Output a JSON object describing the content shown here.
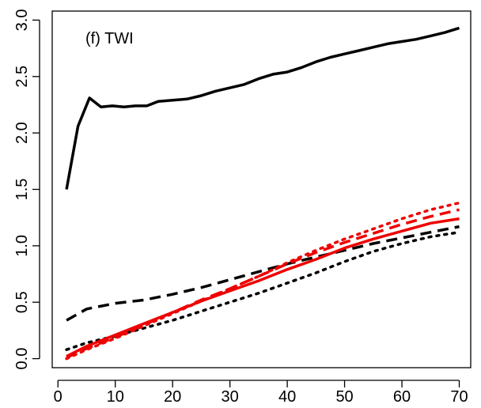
{
  "chart_data": {
    "type": "line",
    "annotation": "(f) TWI",
    "title": "",
    "xlabel": "",
    "ylabel": "",
    "xlim": [
      -1,
      72
    ],
    "ylim": [
      -0.08,
      3.08
    ],
    "x_ticks": [
      0,
      10,
      20,
      30,
      40,
      50,
      60,
      70
    ],
    "x_tick_labels": [
      "0",
      "10",
      "20",
      "30",
      "40",
      "50",
      "60",
      "70"
    ],
    "y_ticks": [
      0.0,
      0.5,
      1.0,
      1.5,
      2.0,
      2.5,
      3.0
    ],
    "y_tick_labels": [
      "0.0",
      "0.5",
      "1.0",
      "1.5",
      "2.0",
      "2.5",
      "3.0"
    ],
    "grid": false,
    "legend": "none",
    "series": [
      {
        "color": "#000000",
        "style": "solid",
        "x": [
          1.5,
          3.5,
          5.5,
          7.5,
          9.5,
          11.5,
          13.5,
          15.5,
          17.5,
          20,
          22.5,
          25,
          27.5,
          30,
          32.5,
          35,
          37.5,
          40,
          42.5,
          45,
          47.5,
          50,
          52.5,
          55,
          57.5,
          60,
          62.5,
          65,
          67.5,
          70
        ],
        "y": [
          1.5,
          2.06,
          2.31,
          2.23,
          2.24,
          2.23,
          2.24,
          2.24,
          2.28,
          2.29,
          2.3,
          2.33,
          2.37,
          2.4,
          2.43,
          2.48,
          2.52,
          2.54,
          2.58,
          2.63,
          2.67,
          2.7,
          2.73,
          2.76,
          2.79,
          2.81,
          2.83,
          2.86,
          2.89,
          2.93
        ]
      },
      {
        "color": "#000000",
        "style": "dashed",
        "x": [
          1.5,
          5,
          10,
          15,
          20,
          25,
          30,
          35,
          40,
          45,
          50,
          55,
          60,
          65,
          70
        ],
        "y": [
          0.34,
          0.44,
          0.49,
          0.52,
          0.57,
          0.63,
          0.7,
          0.77,
          0.84,
          0.9,
          0.96,
          1.02,
          1.07,
          1.12,
          1.17
        ]
      },
      {
        "color": "#000000",
        "style": "dotted",
        "x": [
          1.5,
          5,
          10,
          15,
          20,
          25,
          30,
          35,
          40,
          45,
          50,
          55,
          60,
          65,
          70
        ],
        "y": [
          0.08,
          0.14,
          0.2,
          0.27,
          0.34,
          0.42,
          0.5,
          0.58,
          0.67,
          0.76,
          0.86,
          0.95,
          1.02,
          1.08,
          1.12
        ]
      },
      {
        "color": "#ee0000",
        "style": "solid",
        "x": [
          1.5,
          5,
          10,
          15,
          20,
          25,
          30,
          35,
          40,
          45,
          50,
          55,
          60,
          65,
          70
        ],
        "y": [
          0.02,
          0.11,
          0.21,
          0.31,
          0.41,
          0.51,
          0.6,
          0.69,
          0.79,
          0.88,
          0.98,
          1.06,
          1.13,
          1.2,
          1.24
        ]
      },
      {
        "color": "#ee0000",
        "style": "dashed",
        "x": [
          1.5,
          5,
          10,
          15,
          20,
          25,
          30,
          35,
          40,
          45,
          50,
          55,
          60,
          65,
          70
        ],
        "y": [
          0.01,
          0.09,
          0.19,
          0.3,
          0.41,
          0.52,
          0.62,
          0.73,
          0.84,
          0.94,
          1.03,
          1.11,
          1.19,
          1.26,
          1.32
        ]
      },
      {
        "color": "#ee0000",
        "style": "dotted",
        "x": [
          1.5,
          5,
          10,
          15,
          20,
          25,
          30,
          35,
          40,
          45,
          50,
          55,
          60,
          65,
          70
        ],
        "y": [
          0.0,
          0.08,
          0.18,
          0.29,
          0.4,
          0.51,
          0.62,
          0.73,
          0.85,
          0.96,
          1.06,
          1.15,
          1.24,
          1.32,
          1.38
        ]
      }
    ]
  }
}
